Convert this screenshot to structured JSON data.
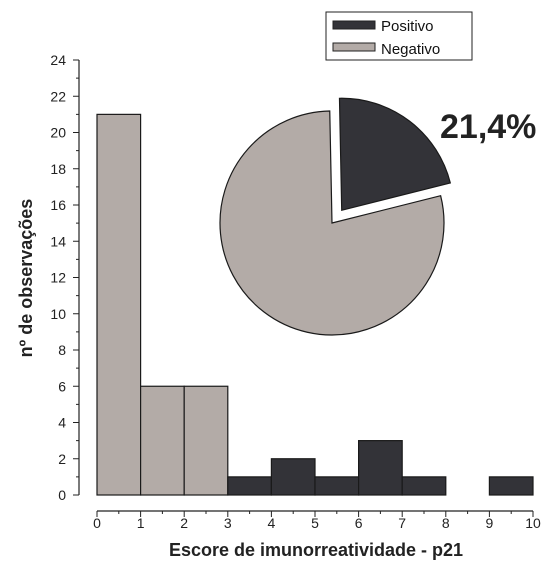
{
  "chart_data": [
    {
      "type": "bar",
      "xlabel": "Escore de imunorreatividade - p21",
      "ylabel": "nº de observações",
      "xlim": [
        0,
        10
      ],
      "ylim": [
        0,
        24
      ],
      "x_ticks": [
        "0",
        "1",
        "2",
        "3",
        "4",
        "5",
        "6",
        "7",
        "8",
        "9",
        "10"
      ],
      "y_ticks": [
        "0",
        "2",
        "4",
        "6",
        "8",
        "10",
        "12",
        "14",
        "16",
        "18",
        "20",
        "22",
        "24"
      ],
      "bins": [
        {
          "x0": 0,
          "x1": 1,
          "value": 21,
          "series": "Negativo"
        },
        {
          "x0": 1,
          "x1": 2,
          "value": 6,
          "series": "Negativo"
        },
        {
          "x0": 2,
          "x1": 3,
          "value": 6,
          "series": "Negativo"
        },
        {
          "x0": 3,
          "x1": 4,
          "value": 1,
          "series": "Positivo"
        },
        {
          "x0": 4,
          "x1": 5,
          "value": 2,
          "series": "Positivo"
        },
        {
          "x0": 5,
          "x1": 6,
          "value": 1,
          "series": "Positivo"
        },
        {
          "x0": 6,
          "x1": 7,
          "value": 3,
          "series": "Positivo"
        },
        {
          "x0": 7,
          "x1": 8,
          "value": 1,
          "series": "Positivo"
        },
        {
          "x0": 8,
          "x1": 9,
          "value": 0,
          "series": "Positivo"
        },
        {
          "x0": 9,
          "x1": 10,
          "value": 1,
          "series": "Positivo"
        }
      ],
      "legend": {
        "placement": "top-right",
        "entries": [
          {
            "name": "Positivo",
            "color": "#333338"
          },
          {
            "name": "Negativo",
            "color": "#b3aba7"
          }
        ]
      }
    },
    {
      "type": "pie",
      "slices": [
        {
          "name": "Positivo",
          "value": 21.4,
          "color": "#333338",
          "exploded": true
        },
        {
          "name": "Negativo",
          "value": 78.6,
          "color": "#b3aba7",
          "exploded": false
        }
      ],
      "annotation": "21,4%"
    }
  ]
}
